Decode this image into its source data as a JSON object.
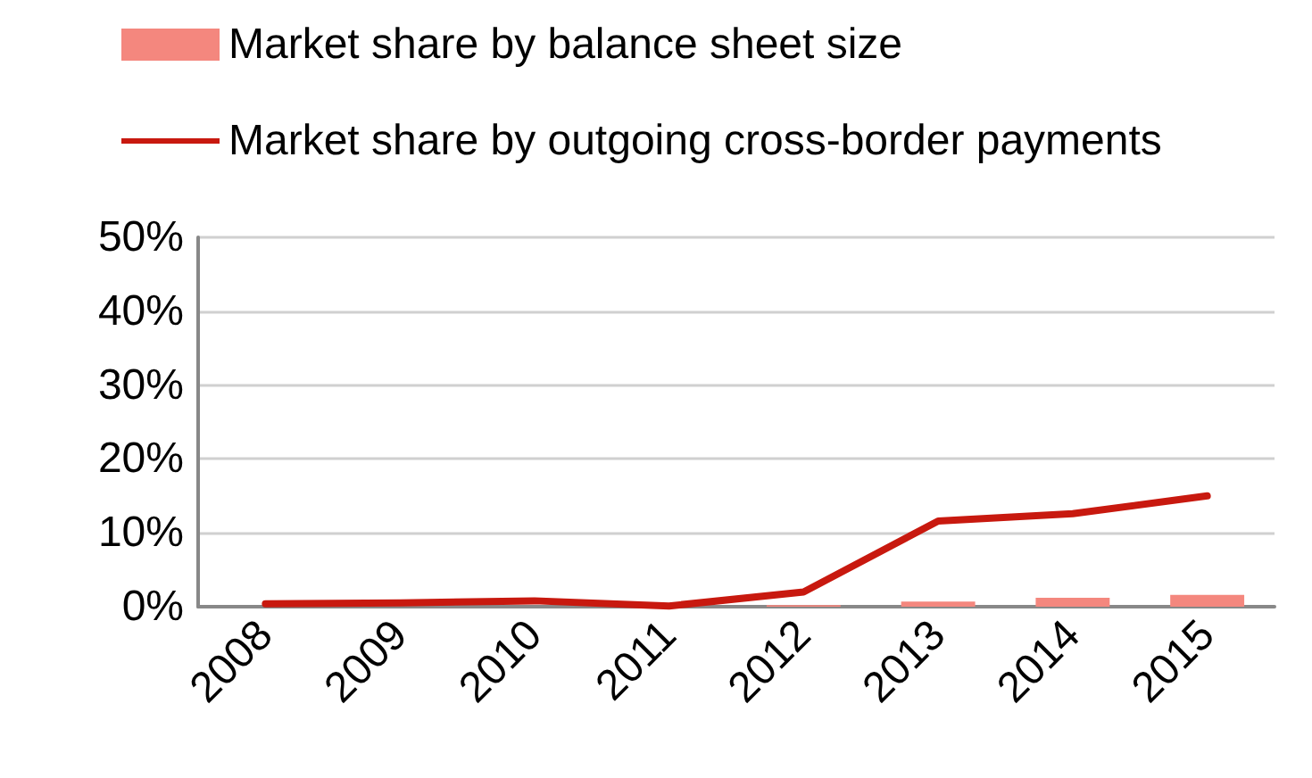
{
  "chart_data": {
    "type": "bar",
    "categories": [
      "2008",
      "2009",
      "2010",
      "2011",
      "2012",
      "2013",
      "2014",
      "2015"
    ],
    "series": [
      {
        "name": "Market share by balance sheet size",
        "color": "#f4877e",
        "values": [
          0,
          0,
          0,
          0,
          0.2,
          0.7,
          1.2,
          1.6
        ]
      },
      {
        "name": "Market share by outgoing cross-border payments",
        "type": "line",
        "color": "#c8190f",
        "values": [
          0.4,
          0.5,
          0.8,
          0.1,
          2.0,
          11.6,
          12.6,
          15.0
        ]
      }
    ],
    "ylim": [
      0,
      50
    ],
    "yticks": [
      {
        "value": 0,
        "label": "0%"
      },
      {
        "value": 10,
        "label": "10%"
      },
      {
        "value": 20,
        "label": "20%"
      },
      {
        "value": 30,
        "label": "30%"
      },
      {
        "value": 40,
        "label": "40%"
      },
      {
        "value": 50,
        "label": "50%"
      }
    ],
    "grid": "y",
    "legend": "top left",
    "marker": "none"
  }
}
